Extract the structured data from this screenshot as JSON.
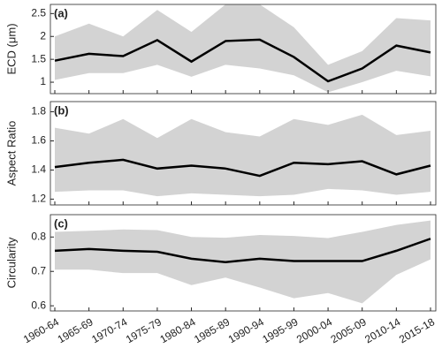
{
  "chart_data": [
    {
      "type": "band-line",
      "label": "(a)",
      "y_label": "ECD (μm)",
      "values": [
        1.47,
        1.62,
        1.57,
        1.92,
        1.45,
        1.9,
        1.93,
        1.55,
        1.02,
        1.3,
        1.8,
        1.65
      ],
      "band_lower": [
        1.05,
        1.2,
        1.2,
        1.38,
        1.12,
        1.38,
        1.3,
        1.15,
        0.78,
        1.0,
        1.25,
        1.13
      ],
      "band_upper": [
        2.0,
        2.28,
        2.0,
        2.58,
        2.1,
        2.7,
        2.7,
        2.2,
        1.38,
        1.68,
        2.4,
        2.35
      ],
      "color": "#000000",
      "band_color": "#d3d3d3",
      "ylim": [
        0.75,
        2.7
      ],
      "yticks": [
        1,
        1.5,
        2,
        2.5
      ]
    },
    {
      "type": "band-line",
      "label": "(b)",
      "y_label": "Aspect Ratio",
      "values": [
        1.42,
        1.45,
        1.47,
        1.41,
        1.43,
        1.41,
        1.36,
        1.45,
        1.44,
        1.46,
        1.37,
        1.43
      ],
      "band_lower": [
        1.25,
        1.26,
        1.26,
        1.22,
        1.24,
        1.23,
        1.22,
        1.23,
        1.27,
        1.26,
        1.23,
        1.25
      ],
      "band_upper": [
        1.69,
        1.65,
        1.75,
        1.62,
        1.75,
        1.66,
        1.63,
        1.75,
        1.71,
        1.78,
        1.64,
        1.67
      ],
      "color": "#000000",
      "band_color": "#d3d3d3",
      "ylim": [
        1.16,
        1.87
      ],
      "yticks": [
        1.2,
        1.4,
        1.6,
        1.8
      ]
    },
    {
      "type": "band-line",
      "label": "(c)",
      "y_label": "Circularity",
      "categories": [
        "1960-64",
        "1965-69",
        "1970-74",
        "1975-79",
        "1980-84",
        "1985-89",
        "1990-94",
        "1995-99",
        "2000-04",
        "2005-09",
        "2010-14",
        "2015-18"
      ],
      "values": [
        0.76,
        0.765,
        0.76,
        0.757,
        0.737,
        0.727,
        0.737,
        0.73,
        0.73,
        0.73,
        0.76,
        0.795
      ],
      "band_lower": [
        0.705,
        0.705,
        0.695,
        0.695,
        0.66,
        0.682,
        0.653,
        0.622,
        0.637,
        0.607,
        0.69,
        0.735
      ],
      "band_upper": [
        0.815,
        0.818,
        0.822,
        0.82,
        0.8,
        0.798,
        0.806,
        0.803,
        0.797,
        0.815,
        0.835,
        0.848
      ],
      "color": "#000000",
      "band_color": "#d3d3d3",
      "ylim": [
        0.585,
        0.865
      ],
      "yticks": [
        0.6,
        0.7,
        0.8
      ]
    }
  ]
}
